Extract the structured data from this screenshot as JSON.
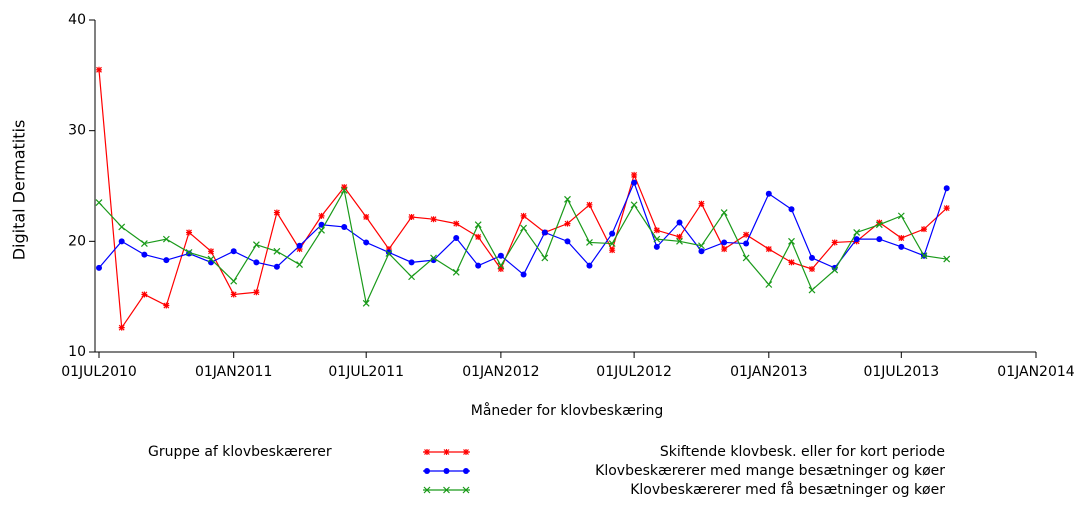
{
  "chart_data": {
    "type": "line",
    "y_label": "Digital Dermatitis",
    "x_label": "Måneder for klovbeskæring",
    "legend_title": "Gruppe af klovbeskærerer",
    "x": [
      "2010-07-01",
      "2010-08-01",
      "2010-09-01",
      "2010-10-01",
      "2010-11-01",
      "2010-12-01",
      "2011-01-01",
      "2011-02-01",
      "2011-03-01",
      "2011-04-01",
      "2011-05-01",
      "2011-06-01",
      "2011-07-01",
      "2011-08-01",
      "2011-09-01",
      "2011-10-01",
      "2011-11-01",
      "2011-12-01",
      "2012-01-01",
      "2012-02-01",
      "2012-03-01",
      "2012-04-01",
      "2012-05-01",
      "2012-06-01",
      "2012-07-01",
      "2012-08-01",
      "2012-09-01",
      "2012-10-01",
      "2012-11-01",
      "2012-12-01",
      "2013-01-01",
      "2013-02-01",
      "2013-03-01",
      "2013-04-01",
      "2013-05-01",
      "2013-06-01",
      "2013-07-01",
      "2013-08-01",
      "2013-09-01"
    ],
    "series": [
      {
        "name": "Skiftende klovbesk. eller for kort periode",
        "color": "#ff0000",
        "marker": "star",
        "values": [
          35.5,
          12.2,
          15.2,
          14.2,
          20.8,
          19.1,
          15.2,
          15.4,
          22.6,
          19.3,
          22.3,
          24.9,
          22.2,
          19.3,
          22.2,
          22.0,
          21.6,
          20.4,
          17.5,
          22.3,
          20.8,
          21.6,
          23.3,
          19.2,
          26.0,
          21.0,
          20.4,
          23.4,
          19.3,
          20.6,
          19.3,
          18.1,
          17.5,
          19.9,
          20.0,
          21.7,
          20.3,
          21.1,
          23.0
        ]
      },
      {
        "name": "Klovbeskærerer med mange besætninger og køer",
        "color": "#0000ff",
        "marker": "dot",
        "values": [
          17.6,
          20.0,
          18.8,
          18.3,
          18.9,
          18.1,
          19.1,
          18.1,
          17.7,
          19.6,
          21.5,
          21.3,
          19.9,
          19.0,
          18.1,
          18.3,
          20.3,
          17.8,
          18.7,
          17.0,
          20.8,
          20.0,
          17.8,
          20.7,
          25.3,
          19.5,
          21.7,
          19.1,
          19.9,
          19.8,
          24.3,
          22.9,
          18.5,
          17.6,
          20.2,
          20.2,
          19.5,
          18.7,
          24.8
        ]
      },
      {
        "name": "Klovbeskærerer med få besætninger og køer",
        "color": "#1a9a1a",
        "marker": "x",
        "values": [
          23.5,
          21.3,
          19.8,
          20.2,
          19.0,
          18.4,
          16.4,
          19.7,
          19.1,
          17.9,
          21.0,
          24.6,
          14.4,
          18.9,
          16.8,
          18.5,
          17.2,
          21.5,
          17.8,
          21.2,
          18.5,
          23.8,
          19.9,
          19.8,
          23.3,
          20.2,
          20.0,
          19.6,
          22.6,
          18.5,
          16.1,
          20.0,
          15.6,
          17.4,
          20.8,
          21.5,
          22.3,
          18.7,
          18.4
        ]
      }
    ],
    "xlim": [
      "2010-07-01",
      "2014-01-01"
    ],
    "xticks": [
      {
        "value": "2010-07-01",
        "label": "01JUL2010"
      },
      {
        "value": "2011-01-01",
        "label": "01JAN2011"
      },
      {
        "value": "2011-07-01",
        "label": "01JUL2011"
      },
      {
        "value": "2012-01-01",
        "label": "01JAN2012"
      },
      {
        "value": "2012-07-01",
        "label": "01JUL2012"
      },
      {
        "value": "2013-01-01",
        "label": "01JAN2013"
      },
      {
        "value": "2013-07-01",
        "label": "01JUL2013"
      },
      {
        "value": "2014-01-01",
        "label": "01JAN2014"
      }
    ],
    "ylim": [
      10,
      40
    ],
    "yticks": [
      10,
      20,
      30,
      40
    ]
  }
}
